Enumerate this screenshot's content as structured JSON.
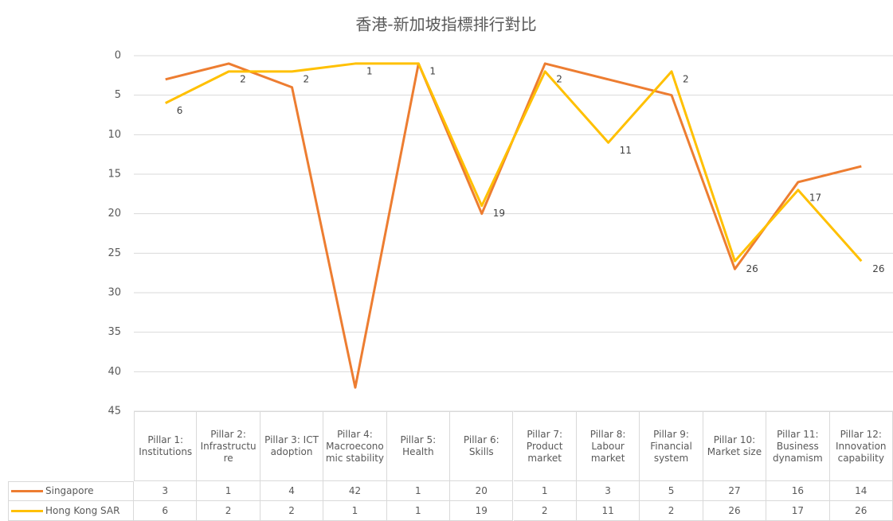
{
  "chart_data": {
    "type": "line",
    "title": "香港-新加坡指標排行對比",
    "categories": [
      "Pillar 1: Institutions",
      "Pillar 2: Infrastructure",
      "Pillar 3: ICT adoption",
      "Pillar 4: Macroeconomic stability",
      "Pillar 5: Health",
      "Pillar 6: Skills",
      "Pillar 7: Product market",
      "Pillar 8: Labour market",
      "Pillar 9: Financial system",
      "Pillar 10: Market size",
      "Pillar 11: Business dynamism",
      "Pillar 12: Innovation capability"
    ],
    "series": [
      {
        "name": "Singapore",
        "color": "#ed7d31",
        "values": [
          3,
          1,
          4,
          42,
          1,
          20,
          1,
          3,
          5,
          27,
          16,
          14
        ]
      },
      {
        "name": "Hong Kong SAR",
        "color": "#ffc000",
        "values": [
          6,
          2,
          2,
          1,
          1,
          19,
          2,
          11,
          2,
          26,
          17,
          26
        ],
        "data_labels": true
      }
    ],
    "ylim": [
      0,
      45
    ],
    "yticks": [
      0,
      5,
      10,
      15,
      20,
      25,
      30,
      35,
      40,
      45
    ],
    "y_reversed": true,
    "grid": true,
    "data_table": true
  }
}
